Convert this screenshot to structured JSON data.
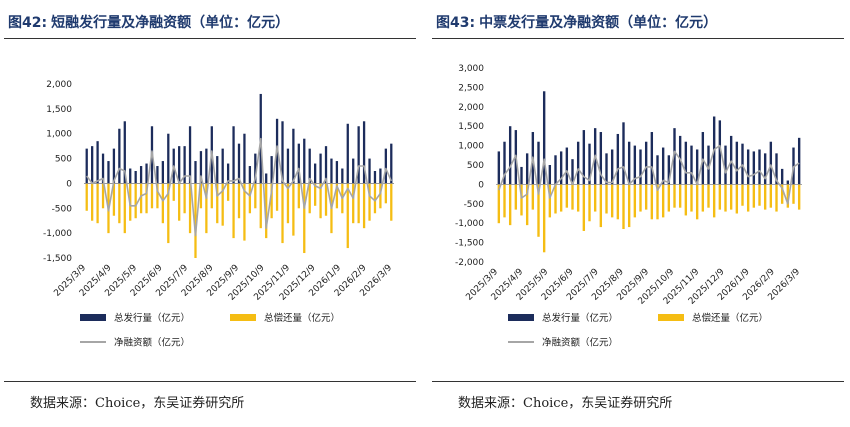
{
  "colors": {
    "issuance": "#1c2c5b",
    "repayment": "#f5bd13",
    "net": "#a6a6a6"
  },
  "panels": [
    {
      "title_num": "图42:",
      "title": "短融发行量及净融资额（单位：亿元）",
      "source": "数据来源：Choice，东吴证券研究所",
      "legend": {
        "issuance": "总发行量（亿元）",
        "repayment": "总偿还量（亿元）",
        "net": "净融资额（亿元）"
      },
      "chart_data": {
        "type": "bar",
        "title": "短融发行量及净融资额（单位：亿元）",
        "ylim": [
          -1500,
          2000
        ],
        "yticks": [
          -1500,
          -1000,
          -500,
          0,
          500,
          1000,
          1500,
          2000
        ],
        "ytick_labels": [
          "-1,500",
          "-1,000",
          "-500",
          "0",
          "500",
          "1,000",
          "1,500",
          "2,000"
        ],
        "xtick_labels": [
          "2025/3/9",
          "2025/4/9",
          "2025/5/9",
          "2025/6/9",
          "2025/7/9",
          "2025/8/9",
          "2025/9/9",
          "2025/10/9",
          "2025/11/9",
          "2025/12/9",
          "2026/1/9",
          "2026/2/9",
          "2026/3/9"
        ],
        "series": [
          {
            "name": "总发行量（亿元）",
            "type": "bar",
            "values": [
              700,
              750,
              850,
              600,
              450,
              700,
              1100,
              1250,
              300,
              250,
              350,
              400,
              1150,
              350,
              450,
              1000,
              700,
              750,
              750,
              1150,
              450,
              650,
              700,
              1150,
              550,
              700,
              400,
              1150,
              800,
              1000,
              350,
              600,
              1800,
              200,
              550,
              1300,
              1250,
              700,
              1100,
              800,
              900,
              700,
              400,
              600,
              750,
              500,
              450,
              300,
              1200,
              500,
              1150,
              1250,
              500,
              250,
              300,
              700,
              800
            ]
          },
          {
            "name": "总偿还量（亿元）",
            "type": "bar",
            "values": [
              -550,
              -750,
              -800,
              -500,
              -1000,
              -650,
              -800,
              -1000,
              -750,
              -700,
              -600,
              -600,
              -500,
              -500,
              -800,
              -1200,
              -350,
              -750,
              -600,
              -1000,
              -1500,
              -500,
              -1000,
              -500,
              -800,
              -850,
              -350,
              -1100,
              -700,
              -1150,
              -600,
              -500,
              -900,
              -1100,
              -700,
              -550,
              -1200,
              -800,
              -1050,
              -500,
              -1400,
              -600,
              -450,
              -700,
              -650,
              -1000,
              -500,
              -600,
              -1300,
              -800,
              -800,
              -900,
              -750,
              -600,
              -500,
              -400,
              -750
            ]
          },
          {
            "name": "净融资额（亿元）",
            "type": "line",
            "values": [
              150,
              0,
              50,
              100,
              -550,
              50,
              300,
              250,
              -450,
              -450,
              -250,
              -200,
              650,
              -150,
              -350,
              -200,
              350,
              0,
              150,
              150,
              -1050,
              150,
              -300,
              650,
              -250,
              -150,
              50,
              50,
              100,
              -150,
              -250,
              100,
              900,
              -900,
              -150,
              750,
              50,
              -100,
              50,
              300,
              -500,
              100,
              -50,
              -100,
              100,
              -500,
              -50,
              -300,
              -100,
              -300,
              350,
              350,
              -250,
              -350,
              -200,
              300,
              50
            ]
          }
        ]
      }
    },
    {
      "title_num": "图43:",
      "title": "中票发行量及净融资额（单位：亿元）",
      "source": "数据来源：Choice，东吴证券研究所",
      "legend": {
        "issuance": "总发行量（亿元）",
        "repayment": "总偿还量（亿元）",
        "net": "净融资额（亿元）"
      },
      "chart_data": {
        "type": "bar",
        "title": "中票发行量及净融资额（单位：亿元）",
        "ylim": [
          -2000,
          3000
        ],
        "yticks": [
          -2000,
          -1500,
          -1000,
          -500,
          0,
          500,
          1000,
          1500,
          2000,
          2500,
          3000
        ],
        "ytick_labels": [
          "-2,000",
          "-1,500",
          "-1,000",
          "-500",
          "0",
          "500",
          "1,000",
          "1,500",
          "2,000",
          "2,500",
          "3,000"
        ],
        "xtick_labels": [
          "2025/3/9",
          "2025/4/9",
          "2025/5/9",
          "2025/6/9",
          "2025/7/9",
          "2025/8/9",
          "2025/9/9",
          "2025/10/9",
          "2025/11/9",
          "2025/12/9",
          "2026/1/9",
          "2026/2/9",
          "2026/3/9"
        ],
        "series": [
          {
            "name": "总发行量（亿元）",
            "type": "bar",
            "values": [
              850,
              1100,
              1500,
              1400,
              450,
              800,
              1350,
              1100,
              2400,
              500,
              750,
              850,
              950,
              650,
              1100,
              1400,
              1050,
              1450,
              1350,
              800,
              900,
              1300,
              1600,
              1100,
              1000,
              900,
              1100,
              1350,
              750,
              950,
              750,
              1450,
              1250,
              1100,
              1000,
              900,
              1350,
              1000,
              1750,
              1650,
              1000,
              1250,
              1100,
              1050,
              900,
              850,
              900,
              800,
              1100,
              800,
              400,
              100,
              950,
              1200
            ]
          },
          {
            "name": "总偿还量（亿元）",
            "type": "bar",
            "values": [
              -1000,
              -850,
              -1050,
              -650,
              -800,
              -1050,
              -650,
              -1350,
              -1750,
              -850,
              -750,
              -700,
              -600,
              -650,
              -700,
              -1200,
              -950,
              -700,
              -1100,
              -750,
              -850,
              -900,
              -1150,
              -1100,
              -850,
              -700,
              -650,
              -900,
              -900,
              -850,
              -700,
              -600,
              -600,
              -800,
              -700,
              -900,
              -700,
              -600,
              -850,
              -650,
              -700,
              -650,
              -750,
              -550,
              -700,
              -600,
              -550,
              -650,
              -600,
              -700,
              -500,
              -600,
              -500,
              -650
            ]
          },
          {
            "name": "净融资额（亿元）",
            "type": "line",
            "values": [
              -150,
              250,
              450,
              750,
              -350,
              -250,
              700,
              -250,
              650,
              -350,
              0,
              150,
              350,
              0,
              400,
              200,
              100,
              750,
              250,
              50,
              50,
              400,
              450,
              0,
              150,
              200,
              450,
              450,
              -150,
              100,
              50,
              850,
              650,
              300,
              300,
              0,
              650,
              400,
              900,
              1000,
              300,
              600,
              350,
              500,
              200,
              250,
              350,
              150,
              500,
              100,
              -100,
              -500,
              450,
              550
            ]
          }
        ]
      }
    }
  ]
}
